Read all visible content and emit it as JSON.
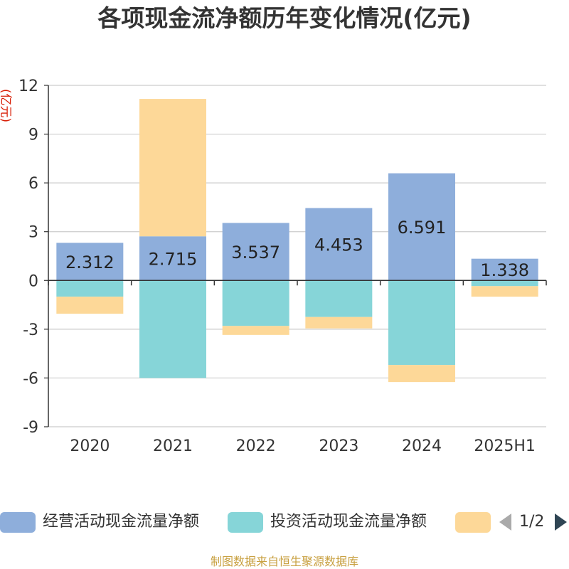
{
  "chart_data": {
    "type": "bar",
    "stacked": true,
    "title": "各项现金流净额历年变化情况(亿元)",
    "ylabel": "(亿元)",
    "categories": [
      "2020",
      "2021",
      "2022",
      "2023",
      "2024",
      "2025H1"
    ],
    "ylim": [
      -9,
      12
    ],
    "yticks": [
      -9,
      -6,
      -3,
      0,
      3,
      6,
      9,
      12
    ],
    "grid": true,
    "series": [
      {
        "name": "经营活动现金流量净额",
        "color": "#8eaedb",
        "values": [
          2.312,
          2.715,
          3.537,
          4.453,
          6.591,
          1.338
        ],
        "labels": [
          "2.312",
          "2.715",
          "3.537",
          "4.453",
          "6.591",
          "1.338"
        ]
      },
      {
        "name": "投资活动现金流量净额",
        "color": "#86d5d8",
        "values": [
          -1.0,
          -6.0,
          -2.8,
          -2.25,
          -5.2,
          -0.35
        ]
      },
      {
        "name": "",
        "color": "#fdd898",
        "values": [
          -1.05,
          8.45,
          -0.55,
          -0.7,
          -1.05,
          -0.65
        ]
      }
    ],
    "legend_position": "bottom"
  },
  "legend": {
    "pager_text": "1/2"
  },
  "source_note": "制图数据来自恒生聚源数据库"
}
